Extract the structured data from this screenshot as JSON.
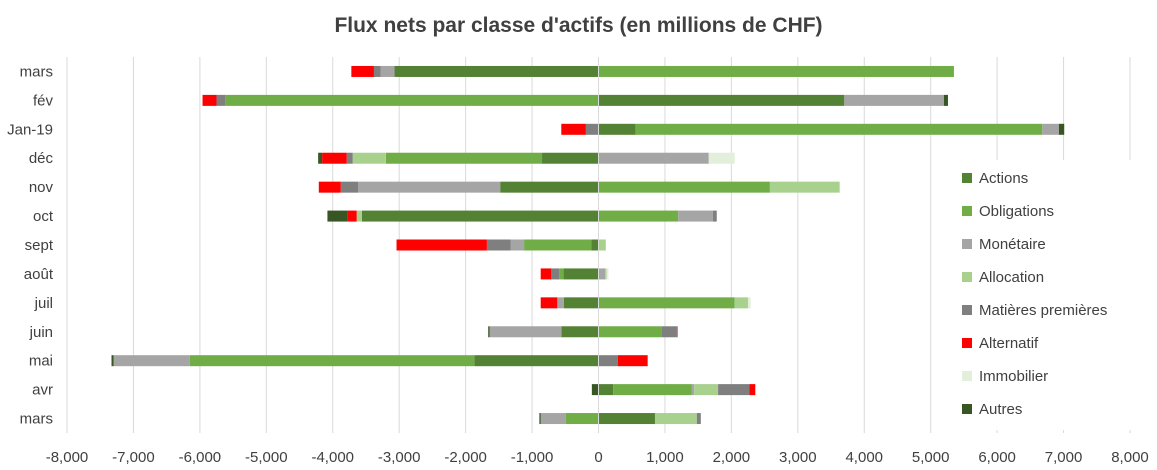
{
  "chart_data": {
    "type": "bar",
    "orientation": "horizontal",
    "stacked": true,
    "title": "Flux nets par classe d'actifs (en millions de CHF)",
    "xlabel": "",
    "ylabel": "",
    "xlim": [
      -8000,
      8000
    ],
    "x_ticks": [
      "-8,000",
      "-7,000",
      "-6,000",
      "-5,000",
      "-4,000",
      "-3,000",
      "-2,000",
      "-1,000",
      "0",
      "1,000",
      "2,000",
      "3,000",
      "4,000",
      "5,000",
      "6,000",
      "7,000",
      "8,000"
    ],
    "grid": "vertical",
    "legend_position": "right",
    "categories": [
      "mars",
      "fév",
      "Jan-19",
      "déc",
      "nov",
      "oct",
      "sept",
      "août",
      "juil",
      "juin",
      "mai",
      "avr",
      "mars"
    ],
    "series": [
      {
        "name": "Actions",
        "color": "#548235",
        "values": [
          -3070,
          3700,
          560,
          -850,
          -1480,
          -3560,
          -110,
          -530,
          -520,
          -560,
          -1870,
          220,
          850
        ]
      },
      {
        "name": "Obligations",
        "color": "#70ad47",
        "values": [
          5350,
          -5620,
          6120,
          -2350,
          2580,
          1200,
          -1010,
          -60,
          2050,
          950,
          -4280,
          1180,
          -490
        ]
      },
      {
        "name": "Monétaire",
        "color": "#a5a5a5",
        "values": [
          -210,
          1500,
          250,
          1660,
          -2140,
          520,
          -200,
          100,
          -100,
          -1080,
          -1150,
          40,
          -380
        ]
      },
      {
        "name": "Allocation",
        "color": "#a9d18e",
        "values": [
          0,
          0,
          0,
          -500,
          1050,
          -80,
          110,
          20,
          200,
          0,
          0,
          360,
          630
        ]
      },
      {
        "name": "Matières premières",
        "color": "#7f7f7f",
        "values": [
          -100,
          -130,
          -190,
          -90,
          -260,
          60,
          -360,
          -120,
          0,
          230,
          290,
          470,
          60
        ]
      },
      {
        "name": "Alternatif",
        "color": "#ff0000",
        "values": [
          -340,
          -210,
          -370,
          -370,
          -330,
          -140,
          -1360,
          -160,
          -250,
          10,
          450,
          90,
          0
        ]
      },
      {
        "name": "Immobilier",
        "color": "#e2efda",
        "values": [
          0,
          0,
          0,
          390,
          0,
          0,
          0,
          30,
          40,
          0,
          0,
          0,
          0
        ]
      },
      {
        "name": "Autres",
        "color": "#375623",
        "values": [
          0,
          60,
          80,
          -60,
          0,
          -300,
          0,
          0,
          0,
          -20,
          -30,
          -100,
          -20
        ]
      }
    ]
  }
}
